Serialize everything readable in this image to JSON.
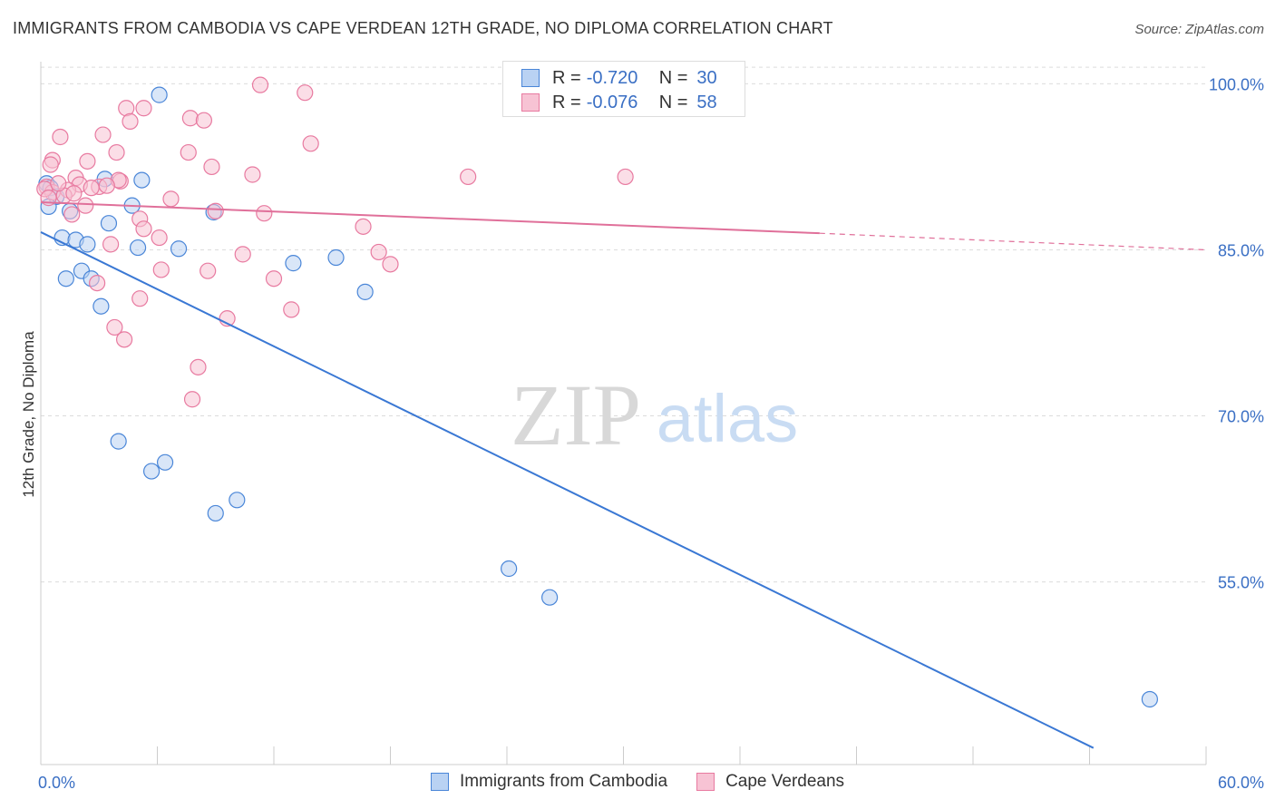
{
  "header": {
    "title": "IMMIGRANTS FROM CAMBODIA VS CAPE VERDEAN 12TH GRADE, NO DIPLOMA CORRELATION CHART",
    "source": "Source: ZipAtlas.com"
  },
  "watermark": {
    "zip": "ZIP",
    "atlas": "atlas"
  },
  "legend": {
    "rows": [
      {
        "r_label": "R =",
        "r_value": "-0.720",
        "n_label": "N =",
        "n_value": "30"
      },
      {
        "r_label": "R =",
        "r_value": "-0.076",
        "n_label": "N =",
        "n_value": "58"
      }
    ]
  },
  "chart_data": {
    "type": "scatter",
    "title": "IMMIGRANTS FROM CAMBODIA VS CAPE VERDEAN 12TH GRADE, NO DIPLOMA CORRELATION CHART",
    "xlabel": "",
    "ylabel": "12th Grade, No Diploma",
    "xlim": [
      0,
      60
    ],
    "ylim": [
      38.5,
      102
    ],
    "x_tick_labels": [
      "0.0%",
      "60.0%"
    ],
    "y_ticks": [
      55,
      70,
      85,
      100
    ],
    "y_tick_labels": [
      "55.0%",
      "70.0%",
      "85.0%",
      "100.0%"
    ],
    "grid": true,
    "legend_position": "top-center",
    "series": [
      {
        "name": "Immigrants from Cambodia",
        "color": "#4a86d8",
        "fill": "#b9d2f3",
        "points": [
          [
            6.1,
            99.0
          ],
          [
            0.3,
            91.0
          ],
          [
            0.5,
            90.6
          ],
          [
            0.8,
            89.8
          ],
          [
            0.4,
            88.9
          ],
          [
            3.3,
            91.4
          ],
          [
            5.2,
            91.3
          ],
          [
            4.7,
            89.0
          ],
          [
            1.5,
            88.5
          ],
          [
            8.9,
            88.4
          ],
          [
            3.5,
            87.4
          ],
          [
            1.1,
            86.1
          ],
          [
            1.8,
            85.9
          ],
          [
            2.4,
            85.5
          ],
          [
            5.0,
            85.2
          ],
          [
            7.1,
            85.1
          ],
          [
            13.0,
            83.8
          ],
          [
            15.2,
            84.3
          ],
          [
            2.1,
            83.1
          ],
          [
            1.3,
            82.4
          ],
          [
            2.6,
            82.4
          ],
          [
            16.7,
            81.2
          ],
          [
            3.1,
            79.9
          ],
          [
            4.0,
            67.7
          ],
          [
            6.4,
            65.8
          ],
          [
            5.7,
            65.0
          ],
          [
            10.1,
            62.4
          ],
          [
            9.0,
            61.2
          ],
          [
            24.1,
            56.2
          ],
          [
            26.2,
            53.6
          ]
        ],
        "extra_points": [
          [
            57.1,
            44.4
          ]
        ]
      },
      {
        "name": "Cape Verdeans",
        "color": "#e87aa0",
        "fill": "#f7c3d4",
        "points": [
          [
            11.3,
            99.9
          ],
          [
            13.6,
            99.2
          ],
          [
            4.4,
            97.8
          ],
          [
            5.3,
            97.8
          ],
          [
            7.7,
            96.9
          ],
          [
            8.4,
            96.7
          ],
          [
            4.6,
            96.6
          ],
          [
            1.0,
            95.2
          ],
          [
            3.2,
            95.4
          ],
          [
            13.9,
            94.6
          ],
          [
            3.9,
            93.8
          ],
          [
            7.6,
            93.8
          ],
          [
            0.6,
            93.1
          ],
          [
            2.4,
            93.0
          ],
          [
            8.8,
            92.5
          ],
          [
            0.5,
            92.7
          ],
          [
            10.9,
            91.8
          ],
          [
            22.0,
            91.6
          ],
          [
            30.1,
            91.6
          ],
          [
            1.8,
            91.5
          ],
          [
            4.1,
            91.2
          ],
          [
            2.0,
            90.9
          ],
          [
            0.3,
            90.7
          ],
          [
            3.0,
            90.7
          ],
          [
            1.4,
            90.4
          ],
          [
            0.6,
            90.2
          ],
          [
            1.2,
            89.9
          ],
          [
            6.7,
            89.6
          ],
          [
            2.3,
            89.0
          ],
          [
            1.6,
            88.2
          ],
          [
            9.0,
            88.5
          ],
          [
            11.5,
            88.3
          ],
          [
            5.1,
            87.8
          ],
          [
            16.6,
            87.1
          ],
          [
            5.3,
            86.9
          ],
          [
            6.1,
            86.1
          ],
          [
            3.6,
            85.5
          ],
          [
            10.4,
            84.6
          ],
          [
            17.4,
            84.8
          ],
          [
            18.0,
            83.7
          ],
          [
            6.2,
            83.2
          ],
          [
            8.6,
            83.1
          ],
          [
            12.0,
            82.4
          ],
          [
            2.9,
            82.0
          ],
          [
            5.1,
            80.6
          ],
          [
            12.9,
            79.6
          ],
          [
            9.6,
            78.8
          ],
          [
            3.8,
            78.0
          ],
          [
            4.3,
            76.9
          ],
          [
            8.1,
            74.4
          ],
          [
            7.8,
            71.5
          ],
          [
            0.2,
            90.5
          ],
          [
            2.6,
            90.6
          ],
          [
            0.9,
            91.0
          ],
          [
            1.7,
            90.1
          ],
          [
            4.0,
            91.3
          ],
          [
            3.4,
            90.8
          ],
          [
            0.4,
            89.7
          ]
        ]
      }
    ],
    "trendlines": [
      {
        "series": "Immigrants from Cambodia",
        "x0": 0,
        "y0": 86.6,
        "x1": 54.2,
        "y1": 40.0,
        "dash_from": null
      },
      {
        "series": "Cape Verdeans",
        "x0": 0,
        "y0": 89.3,
        "x1": 40.1,
        "y1": 86.5,
        "dash_to": 60,
        "dash_y": 85.0
      }
    ]
  },
  "bottom_legend": {
    "items": [
      {
        "label": "Immigrants from Cambodia"
      },
      {
        "label": "Cape Verdeans"
      }
    ]
  },
  "colors": {
    "blue_line": "#3a78d4",
    "pink_line": "#e0709a",
    "axis_label_blue": "#3a6fc4",
    "grid": "#dcdcdc"
  }
}
